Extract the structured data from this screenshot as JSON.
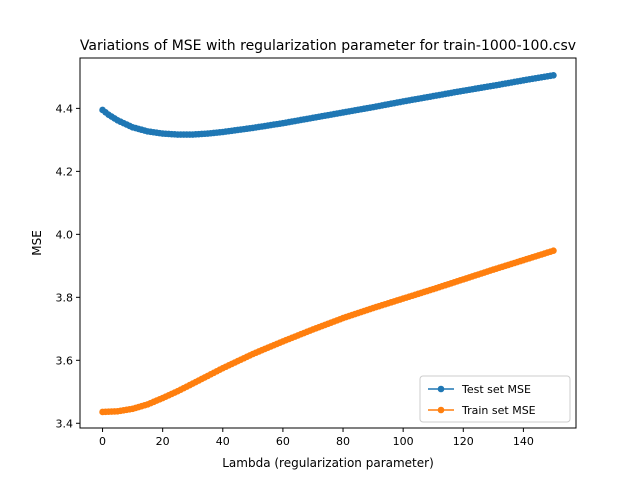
{
  "chart_data": {
    "type": "line",
    "title": "Variations of MSE with regularization parameter for train-1000-100.csv",
    "xlabel": "Lambda (regularization parameter)",
    "ylabel": "MSE",
    "xlim": [
      -7.5,
      157.5
    ],
    "ylim": [
      3.385,
      4.56
    ],
    "xticks": [
      0,
      20,
      40,
      60,
      80,
      100,
      120,
      140
    ],
    "yticks": [
      3.4,
      3.6,
      3.8,
      4.0,
      4.2,
      4.4
    ],
    "ytick_labels": [
      "3.4",
      "3.6",
      "3.8",
      "4.0",
      "4.2",
      "4.4"
    ],
    "grid": false,
    "legend_position": "lower right",
    "x_range": [
      0,
      150
    ],
    "series": [
      {
        "name": "Test set MSE",
        "color": "#1f77b4",
        "marker": "circle",
        "anchors_x": [
          0,
          2,
          5,
          10,
          15,
          20,
          25,
          30,
          35,
          40,
          50,
          60,
          70,
          80,
          90,
          100,
          110,
          120,
          130,
          140,
          150
        ],
        "anchors_y": [
          4.395,
          4.38,
          4.362,
          4.34,
          4.327,
          4.32,
          4.317,
          4.317,
          4.32,
          4.325,
          4.338,
          4.353,
          4.37,
          4.387,
          4.404,
          4.422,
          4.439,
          4.456,
          4.472,
          4.489,
          4.505
        ]
      },
      {
        "name": "Train set MSE",
        "color": "#ff7f0e",
        "marker": "circle",
        "anchors_x": [
          0,
          5,
          10,
          15,
          20,
          25,
          30,
          40,
          50,
          60,
          70,
          80,
          90,
          100,
          110,
          120,
          130,
          140,
          150
        ],
        "anchors_y": [
          3.436,
          3.438,
          3.446,
          3.46,
          3.48,
          3.502,
          3.526,
          3.575,
          3.62,
          3.66,
          3.698,
          3.734,
          3.766,
          3.796,
          3.826,
          3.857,
          3.888,
          3.918,
          3.948
        ]
      }
    ]
  }
}
